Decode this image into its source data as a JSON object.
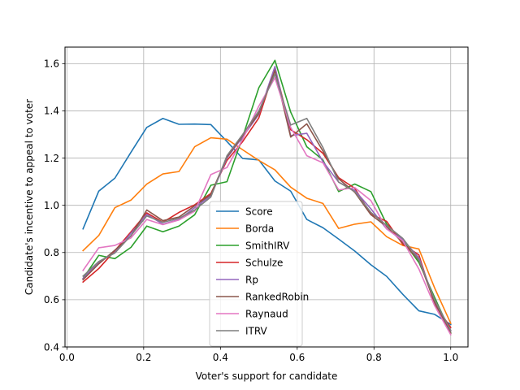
{
  "chart_data": {
    "type": "line",
    "xlabel": "Voter's support for candidate",
    "ylabel": "Candidate's incentive to appeal to voter",
    "xlim": [
      -0.005,
      1.045
    ],
    "ylim": [
      0.4,
      1.67
    ],
    "xticks": [
      0.0,
      0.2,
      0.4,
      0.6,
      0.8,
      1.0
    ],
    "xtick_labels": [
      "0.0",
      "0.2",
      "0.4",
      "0.6",
      "0.8",
      "1.0"
    ],
    "yticks": [
      0.4,
      0.6,
      0.8,
      1.0,
      1.2,
      1.4,
      1.6
    ],
    "ytick_labels": [
      "0.4",
      "0.6",
      "0.8",
      "1.0",
      "1.2",
      "1.4",
      "1.6"
    ],
    "grid": true,
    "legend_position": "lower-center",
    "x": [
      0.042,
      0.083,
      0.125,
      0.167,
      0.208,
      0.25,
      0.292,
      0.333,
      0.375,
      0.417,
      0.458,
      0.5,
      0.542,
      0.583,
      0.625,
      0.667,
      0.708,
      0.75,
      0.792,
      0.833,
      0.875,
      0.917,
      0.958,
      1.0
    ],
    "series": [
      {
        "name": "Score",
        "color": "#1f77b4",
        "values": [
          0.9,
          1.06,
          1.115,
          1.225,
          1.33,
          1.368,
          1.343,
          1.344,
          1.342,
          1.27,
          1.198,
          1.192,
          1.103,
          1.06,
          0.94,
          0.905,
          0.857,
          0.806,
          0.748,
          0.699,
          0.623,
          0.553,
          0.538,
          0.495
        ]
      },
      {
        "name": "Borda",
        "color": "#ff7f0e",
        "values": [
          0.808,
          0.872,
          0.99,
          1.022,
          1.09,
          1.133,
          1.143,
          1.248,
          1.286,
          1.28,
          1.235,
          1.19,
          1.15,
          1.077,
          1.03,
          1.008,
          0.902,
          0.92,
          0.93,
          0.867,
          0.83,
          0.815,
          0.65,
          0.5
        ]
      },
      {
        "name": "SmithIRV",
        "color": "#2ca02c",
        "values": [
          0.69,
          0.788,
          0.774,
          0.822,
          0.912,
          0.888,
          0.912,
          0.96,
          1.085,
          1.1,
          1.29,
          1.498,
          1.614,
          1.395,
          1.248,
          1.192,
          1.058,
          1.09,
          1.058,
          0.92,
          0.85,
          0.758,
          0.61,
          0.46
        ]
      },
      {
        "name": "Schulze",
        "color": "#d62728",
        "values": [
          0.675,
          0.732,
          0.808,
          0.888,
          0.968,
          0.928,
          0.97,
          1.002,
          1.05,
          1.19,
          1.27,
          1.37,
          1.58,
          1.32,
          1.278,
          1.22,
          1.117,
          1.072,
          0.962,
          0.932,
          0.835,
          0.79,
          0.58,
          0.482
        ]
      },
      {
        "name": "Rp",
        "color": "#9467bd",
        "values": [
          0.69,
          0.758,
          0.8,
          0.882,
          0.962,
          0.92,
          0.94,
          0.99,
          1.04,
          1.2,
          1.29,
          1.385,
          1.588,
          1.295,
          1.305,
          1.185,
          1.098,
          1.063,
          0.985,
          0.9,
          0.855,
          0.778,
          0.595,
          0.468
        ]
      },
      {
        "name": "RankedRobin",
        "color": "#8c564b",
        "values": [
          0.685,
          0.752,
          0.81,
          0.87,
          0.98,
          0.935,
          0.95,
          0.998,
          1.045,
          1.205,
          1.295,
          1.39,
          1.57,
          1.289,
          1.345,
          1.23,
          1.112,
          1.055,
          0.96,
          0.91,
          0.842,
          0.768,
          0.588,
          0.458
        ]
      },
      {
        "name": "Raynaud",
        "color": "#e377c2",
        "values": [
          0.724,
          0.82,
          0.83,
          0.862,
          0.94,
          0.918,
          0.938,
          0.975,
          1.13,
          1.16,
          1.28,
          1.42,
          1.54,
          1.33,
          1.21,
          1.18,
          1.065,
          1.075,
          1.02,
          0.9,
          0.85,
          0.73,
          0.575,
          0.452
        ]
      },
      {
        "name": "ITRV",
        "color": "#7f7f7f",
        "values": [
          0.7,
          0.762,
          0.798,
          0.872,
          0.955,
          0.928,
          0.945,
          0.98,
          1.035,
          1.21,
          1.3,
          1.4,
          1.555,
          1.34,
          1.368,
          1.245,
          1.098,
          1.058,
          0.97,
          0.915,
          0.86,
          0.77,
          0.6,
          0.47
        ]
      }
    ]
  }
}
